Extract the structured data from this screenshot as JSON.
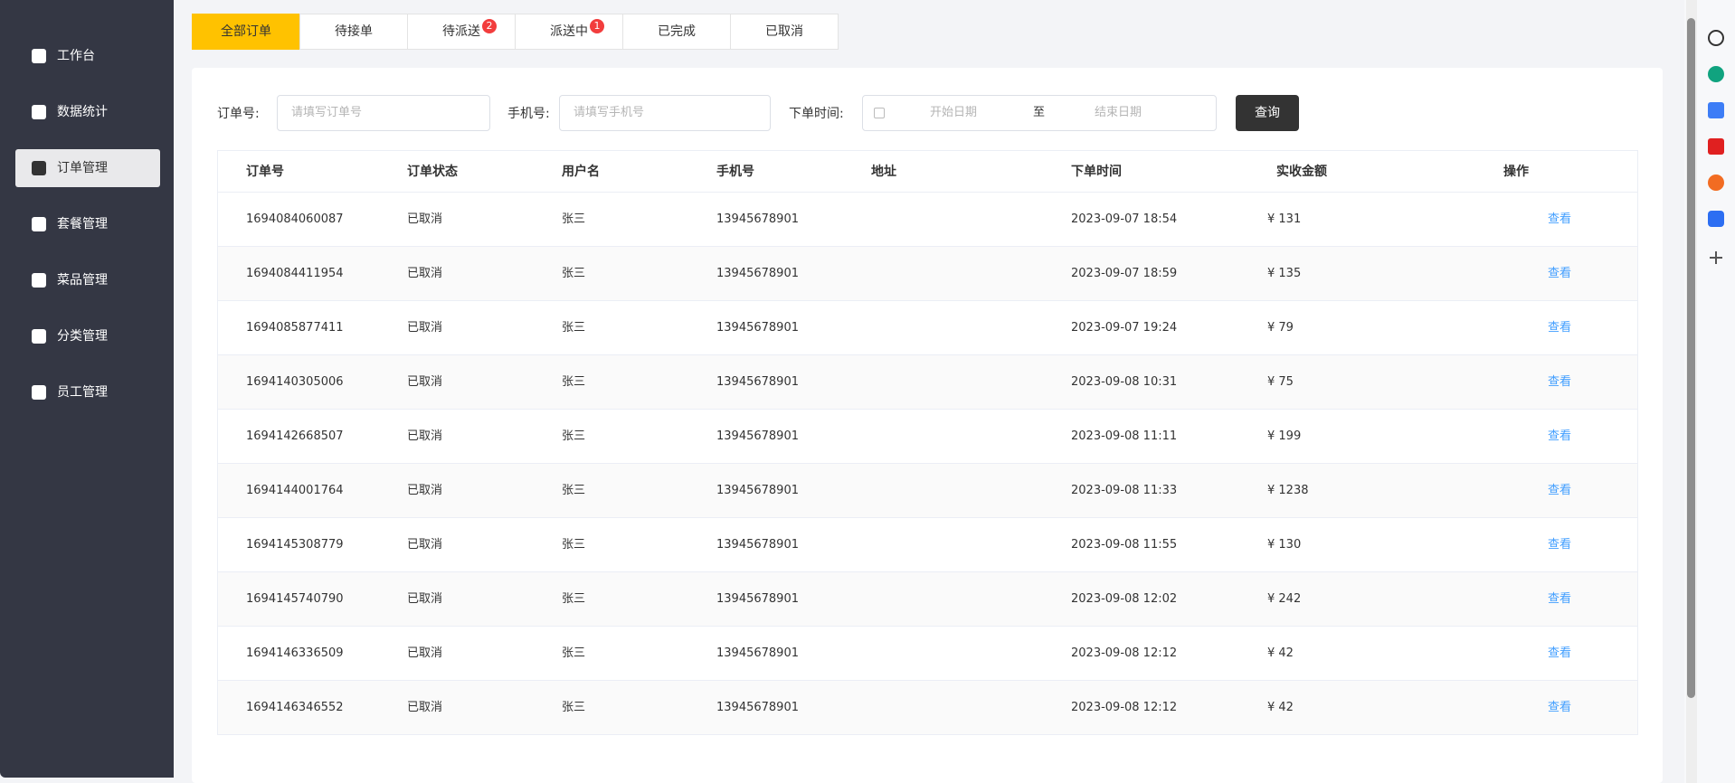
{
  "sidebar": {
    "items": [
      "工作台",
      "数据统计",
      "订单管理",
      "套餐管理",
      "菜品管理",
      "分类管理",
      "员工管理"
    ],
    "active": 2
  },
  "tabs": [
    {
      "label": "全部订单"
    },
    {
      "label": "待接单"
    },
    {
      "label": "待派送",
      "badge": 2
    },
    {
      "label": "派送中",
      "badge": 1
    },
    {
      "label": "已完成"
    },
    {
      "label": "已取消"
    }
  ],
  "active_tab": 0,
  "filters": {
    "order_label": "订单号:",
    "order_placeholder": "请填写订单号",
    "phone_label": "手机号:",
    "phone_placeholder": "请填写手机号",
    "time_label": "下单时间:",
    "start_placeholder": "开始日期",
    "separator": "至",
    "end_placeholder": "结束日期",
    "button": "查询"
  },
  "table": {
    "headers": [
      "订单号",
      "订单状态",
      "用户名",
      "手机号",
      "地址",
      "下单时间",
      "实收金额",
      "操作"
    ],
    "rows": [
      [
        "1694084060087",
        "已取消",
        "张三",
        "13945678901",
        "",
        "2023-09-07 18:54",
        "¥ 131",
        "查看"
      ],
      [
        "1694084411954",
        "已取消",
        "张三",
        "13945678901",
        "",
        "2023-09-07 18:59",
        "¥ 135",
        "查看"
      ],
      [
        "1694085877411",
        "已取消",
        "张三",
        "13945678901",
        "",
        "2023-09-07 19:24",
        "¥ 79",
        "查看"
      ],
      [
        "1694140305006",
        "已取消",
        "张三",
        "13945678901",
        "",
        "2023-09-08 10:31",
        "¥ 75",
        "查看"
      ],
      [
        "1694142668507",
        "已取消",
        "张三",
        "13945678901",
        "",
        "2023-09-08 11:11",
        "¥ 199",
        "查看"
      ],
      [
        "1694144001764",
        "已取消",
        "张三",
        "13945678901",
        "",
        "2023-09-08 11:33",
        "¥ 1238",
        "查看"
      ],
      [
        "1694145308779",
        "已取消",
        "张三",
        "13945678901",
        "",
        "2023-09-08 11:55",
        "¥ 130",
        "查看"
      ],
      [
        "1694145740790",
        "已取消",
        "张三",
        "13945678901",
        "",
        "2023-09-08 12:02",
        "¥ 242",
        "查看"
      ],
      [
        "1694146336509",
        "已取消",
        "张三",
        "13945678901",
        "",
        "2023-09-08 12:12",
        "¥ 42",
        "查看"
      ],
      [
        "1694146346552",
        "已取消",
        "张三",
        "13945678901",
        "",
        "2023-09-08 12:12",
        "¥ 42",
        "查看"
      ]
    ]
  }
}
